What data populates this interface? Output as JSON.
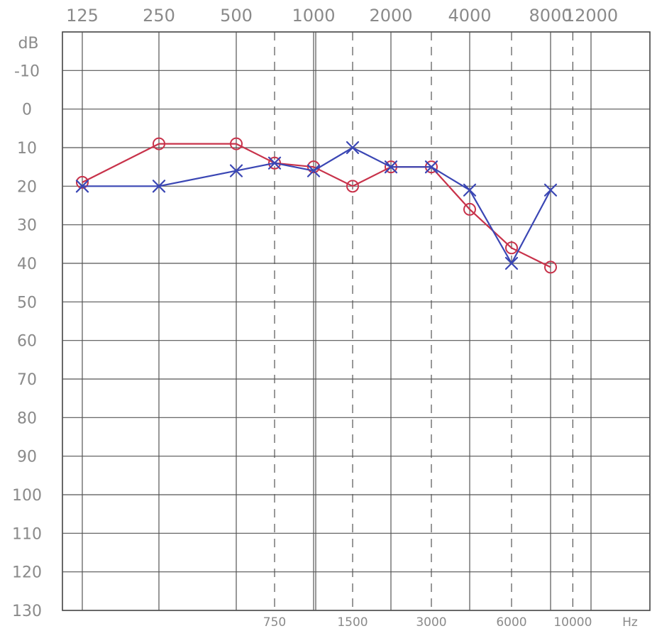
{
  "chart_data": {
    "type": "line",
    "title": "",
    "xlabel": "",
    "ylabel": "dB",
    "x_unit_label": "Hz",
    "ylim": [
      -20,
      130
    ],
    "y_ticks": [
      "-10",
      "0",
      "10",
      "20",
      "30",
      "40",
      "50",
      "60",
      "70",
      "80",
      "90",
      "100",
      "110",
      "120",
      "130"
    ],
    "x_ticks_top": [
      "125",
      "250",
      "500",
      "1000",
      "2000",
      "4000",
      "8000",
      "12000"
    ],
    "x_ticks_bottom": [
      "750",
      "1500",
      "3000",
      "6000",
      "10000"
    ],
    "grid": true,
    "legend": "none",
    "series": [
      {
        "marker": "circle",
        "color": "#c8324a",
        "x": [
          125,
          250,
          500,
          750,
          1000,
          1500,
          2000,
          3000,
          4000,
          6000,
          8000
        ],
        "y": [
          19,
          9,
          9,
          14,
          15,
          20,
          15,
          15,
          26,
          36,
          41
        ]
      },
      {
        "marker": "cross",
        "color": "#3a46b4",
        "x": [
          125,
          250,
          500,
          750,
          1000,
          1500,
          2000,
          3000,
          4000,
          6000,
          8000
        ],
        "y": [
          20,
          20,
          16,
          14,
          16,
          10,
          15,
          15,
          21,
          40,
          21
        ]
      }
    ]
  }
}
